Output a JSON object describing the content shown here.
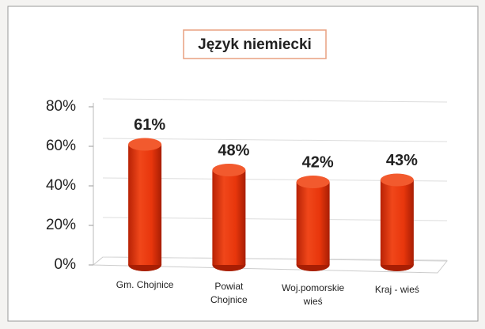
{
  "chart_data": {
    "type": "bar",
    "title": "Język niemiecki",
    "categories": [
      "Gm. Chojnice",
      "Powiat\nChojnice",
      "Woj.pomorskie\nwieś",
      "Kraj - wieś"
    ],
    "values": [
      61,
      48,
      42,
      43
    ],
    "value_labels": [
      "61%",
      "48%",
      "42%",
      "43%"
    ],
    "color": "#e8360c",
    "ylim": [
      0,
      80
    ],
    "yticks": [
      {
        "value": 0,
        "label": "0%"
      },
      {
        "value": 20,
        "label": "20%"
      },
      {
        "value": 40,
        "label": "40%"
      },
      {
        "value": 60,
        "label": "60%"
      },
      {
        "value": 80,
        "label": "80%"
      }
    ],
    "grid": true
  }
}
